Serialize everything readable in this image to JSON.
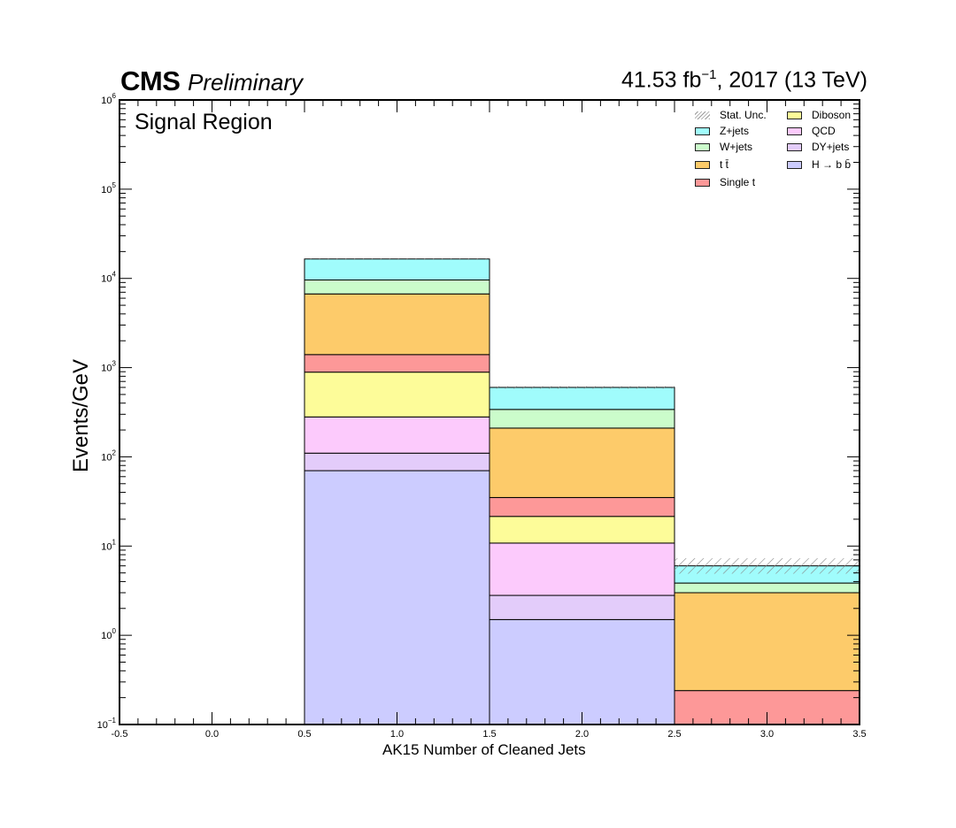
{
  "header": {
    "experiment": "CMS",
    "status": "Preliminary",
    "lumi_value": "41.53 fb",
    "lumi_exp": "−1",
    "lumi_rest": ", 2017 (13 TeV)",
    "region": "Signal Region"
  },
  "chart_data": {
    "type": "bar",
    "subtype": "stacked histogram",
    "xlabel": "AK15 Number of Cleaned Jets",
    "ylabel": "Events/GeV",
    "xlim": [
      -0.5,
      3.5
    ],
    "ylim": [
      0.1,
      1000000
    ],
    "yscale": "log",
    "xticks": [
      "-0.5",
      "0.0",
      "0.5",
      "1.0",
      "1.5",
      "2.0",
      "2.5",
      "3.0",
      "3.5"
    ],
    "yticks": [
      {
        "base": "10",
        "exp": "−1",
        "value": 0.1
      },
      {
        "base": "10",
        "exp": "0",
        "value": 1
      },
      {
        "base": "10",
        "exp": "1",
        "value": 10
      },
      {
        "base": "10",
        "exp": "2",
        "value": 100
      },
      {
        "base": "10",
        "exp": "3",
        "value": 1000
      },
      {
        "base": "10",
        "exp": "4",
        "value": 10000
      },
      {
        "base": "10",
        "exp": "5",
        "value": 100000
      },
      {
        "base": "10",
        "exp": "6",
        "value": 1000000
      }
    ],
    "bin_edges": [
      -0.5,
      0.5,
      1.5,
      2.5,
      3.5
    ],
    "stack_order": [
      "H → b b̄",
      "DY+jets",
      "QCD",
      "Diboson",
      "Single t",
      "t t̄",
      "W+jets",
      "Z+jets"
    ],
    "series": [
      {
        "name": "H → b b̄",
        "color": "#ccccff",
        "values": [
          0,
          70,
          1.5,
          0
        ]
      },
      {
        "name": "DY+jets",
        "color": "#e3ccfa",
        "values": [
          0,
          40,
          1.3,
          0
        ]
      },
      {
        "name": "QCD",
        "color": "#fccafc",
        "values": [
          0,
          170,
          8,
          0
        ]
      },
      {
        "name": "Diboson",
        "color": "#fdfc99",
        "values": [
          0,
          610,
          10.7,
          0
        ]
      },
      {
        "name": "Single t",
        "color": "#fd9898",
        "values": [
          0,
          510,
          13.5,
          0.24
        ]
      },
      {
        "name": "t t̄",
        "color": "#fdcb6a",
        "values": [
          0,
          5300,
          175,
          2.76
        ]
      },
      {
        "name": "W+jets",
        "color": "#cbfccb",
        "values": [
          0,
          2900,
          130,
          0.85
        ]
      },
      {
        "name": "Z+jets",
        "color": "#a0fcfc",
        "values": [
          0,
          6900,
          260,
          2.15
        ]
      }
    ],
    "stat_unc": {
      "label": "Stat. Unc.",
      "up": [
        0,
        16600,
        620,
        7.3
      ],
      "down": [
        0,
        16200,
        580,
        4.9
      ]
    },
    "legend": {
      "placement": "top-right",
      "columns": [
        [
          {
            "label": "Stat. Unc.",
            "series": null
          },
          {
            "label": "Z+jets",
            "series": "Z+jets"
          },
          {
            "label": "W+jets",
            "series": "W+jets"
          },
          {
            "label": "t t̄",
            "series": "t t̄"
          },
          {
            "label": "Single t",
            "series": "Single t"
          }
        ],
        [
          {
            "label": "Diboson",
            "series": "Diboson"
          },
          {
            "label": "QCD",
            "series": "QCD"
          },
          {
            "label": "DY+jets",
            "series": "DY+jets"
          },
          {
            "label": "H → b b̄",
            "series": "H → b b̄"
          }
        ]
      ]
    },
    "grid": false
  }
}
